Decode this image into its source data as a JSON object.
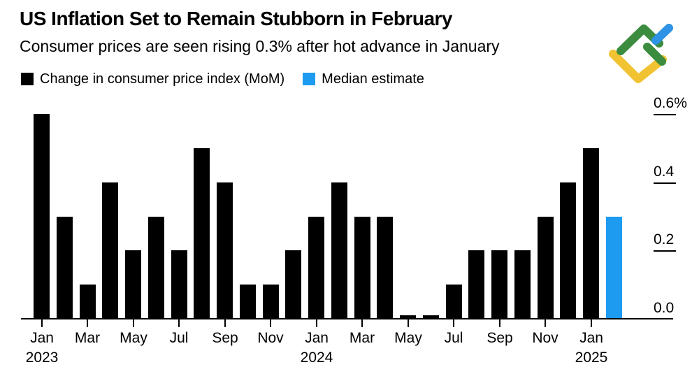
{
  "header": {
    "title": "US Inflation Set to Remain Stubborn in February",
    "subtitle": "Consumer prices are seen rising 0.3% after hot advance in January"
  },
  "legend": {
    "cpi_label": "Change in consumer price index (MoM)",
    "estimate_label": "Median estimate"
  },
  "logo": {
    "name": "litefinance-logo",
    "colors": {
      "green": "#3b8c3f",
      "yellow": "#f1c232",
      "blue": "#2e93e5"
    }
  },
  "colors": {
    "bar_black": "#000000",
    "bar_blue": "#1c9bf0",
    "axis": "#000000",
    "background": "#ffffff"
  },
  "chart_data": {
    "type": "bar",
    "title": "US Inflation Set to Remain Stubborn in February",
    "subtitle": "Consumer prices are seen rising 0.3% after hot advance in January",
    "unit": "%",
    "ylim": [
      0,
      0.6
    ],
    "grid": false,
    "legend_position": "top-left",
    "series": [
      {
        "name": "Change in consumer price index (MoM)",
        "color": "#000000"
      },
      {
        "name": "Median estimate",
        "color": "#1c9bf0"
      }
    ],
    "months": [
      "Jan 2023",
      "Feb 2023",
      "Mar 2023",
      "Apr 2023",
      "May 2023",
      "Jun 2023",
      "Jul 2023",
      "Aug 2023",
      "Sep 2023",
      "Oct 2023",
      "Nov 2023",
      "Dec 2023",
      "Jan 2024",
      "Feb 2024",
      "Mar 2024",
      "Apr 2024",
      "May 2024",
      "Jun 2024",
      "Jul 2024",
      "Aug 2024",
      "Sep 2024",
      "Oct 2024",
      "Nov 2024",
      "Dec 2024",
      "Jan 2025",
      "Feb 2025"
    ],
    "values": [
      0.6,
      0.3,
      0.1,
      0.4,
      0.2,
      0.3,
      0.2,
      0.5,
      0.4,
      0.1,
      0.1,
      0.2,
      0.3,
      0.4,
      0.3,
      0.3,
      0.01,
      0.01,
      0.1,
      0.2,
      0.2,
      0.2,
      0.3,
      0.4,
      0.5,
      0.3
    ],
    "estimate_index": 25,
    "yticks": [
      {
        "label": "0.6%",
        "value": 0.6
      },
      {
        "label": "0.4",
        "value": 0.4
      },
      {
        "label": "0.2",
        "value": 0.2
      },
      {
        "label": "0.0",
        "value": 0.0
      }
    ],
    "xticks": [
      {
        "index": 0,
        "month": "Jan",
        "year": "2023"
      },
      {
        "index": 2,
        "month": "Mar"
      },
      {
        "index": 4,
        "month": "May"
      },
      {
        "index": 6,
        "month": "Jul"
      },
      {
        "index": 8,
        "month": "Sep"
      },
      {
        "index": 10,
        "month": "Nov"
      },
      {
        "index": 12,
        "month": "Jan",
        "year": "2024"
      },
      {
        "index": 14,
        "month": "Mar"
      },
      {
        "index": 16,
        "month": "May"
      },
      {
        "index": 18,
        "month": "Jul"
      },
      {
        "index": 20,
        "month": "Sep"
      },
      {
        "index": 22,
        "month": "Nov"
      },
      {
        "index": 24,
        "month": "Jan",
        "year": "2025"
      }
    ]
  }
}
